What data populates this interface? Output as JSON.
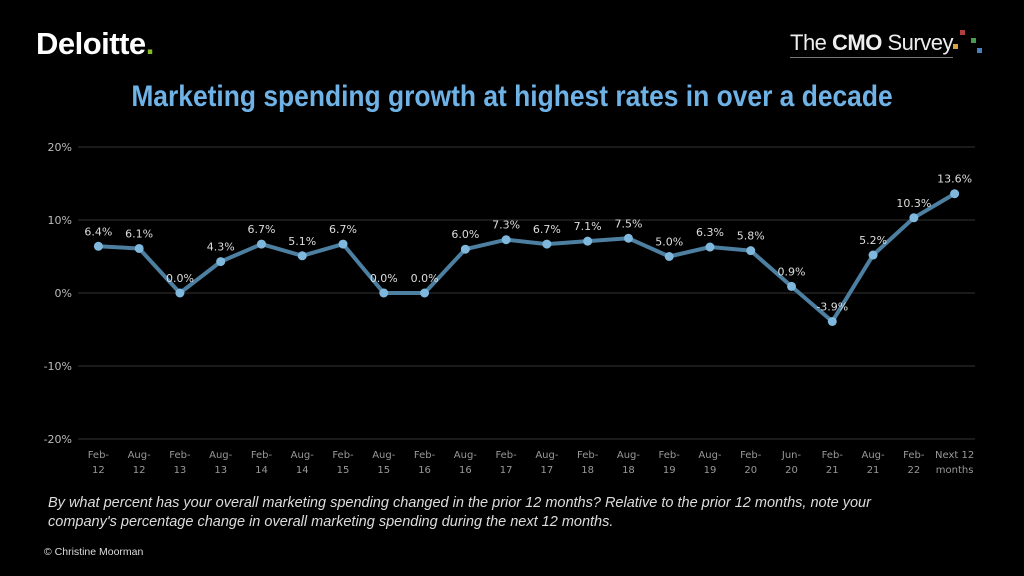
{
  "brand": {
    "deloitte": "Deloitte",
    "deloitte_dot": ".",
    "cmo_prefix": "The ",
    "cmo_bold": "CMO",
    "cmo_suffix": " Survey",
    "colors": {
      "deloitte_green": "#86bc25",
      "title_blue": "#6fb2e6",
      "line": "#4d7fa0",
      "marker": "#7fb8dc"
    }
  },
  "note": "By what percent has your overall marketing spending changed in the prior 12 months? Relative to the prior 12 months, note your company's percentage change in overall marketing spending during the next 12 months.",
  "copyright": "© Christine  Moorman",
  "chart_data": {
    "type": "line",
    "title": "Marketing spending growth at highest rates in over a decade",
    "categories": [
      [
        "Feb-",
        "12"
      ],
      [
        "Aug-",
        "12"
      ],
      [
        "Feb-",
        "13"
      ],
      [
        "Aug-",
        "13"
      ],
      [
        "Feb-",
        "14"
      ],
      [
        "Aug-",
        "14"
      ],
      [
        "Feb-",
        "15"
      ],
      [
        "Aug-",
        "15"
      ],
      [
        "Feb-",
        "16"
      ],
      [
        "Aug-",
        "16"
      ],
      [
        "Feb-",
        "17"
      ],
      [
        "Aug-",
        "17"
      ],
      [
        "Feb-",
        "18"
      ],
      [
        "Aug-",
        "18"
      ],
      [
        "Feb-",
        "19"
      ],
      [
        "Aug-",
        "19"
      ],
      [
        "Feb-",
        "20"
      ],
      [
        "Jun-",
        "20"
      ],
      [
        "Feb-",
        "21"
      ],
      [
        "Aug-",
        "21"
      ],
      [
        "Feb-",
        "22"
      ],
      [
        "Next 12",
        "months"
      ]
    ],
    "values": [
      6.4,
      6.1,
      0.0,
      4.3,
      6.7,
      5.1,
      6.7,
      0.0,
      0.0,
      6.0,
      7.3,
      6.7,
      7.1,
      7.5,
      5.0,
      6.3,
      5.8,
      0.9,
      -3.9,
      5.2,
      10.3,
      13.6
    ],
    "data_labels": [
      "6.4%",
      "6.1%",
      "0.0%",
      "4.3%",
      "6.7%",
      "5.1%",
      "6.7%",
      "0.0%",
      "0.0%",
      "6.0%",
      "7.3%",
      "6.7%",
      "7.1%",
      "7.5%",
      "5.0%",
      "6.3%",
      "5.8%",
      "0.9%",
      "-3.9%",
      "5.2%",
      "10.3%",
      "13.6%"
    ],
    "yticks": [
      "20%",
      "10%",
      "0%",
      "-10%",
      "-20%"
    ],
    "ytick_values": [
      20,
      10,
      0,
      -10,
      -20
    ],
    "ylim": [
      -20,
      20
    ],
    "grid": true
  }
}
